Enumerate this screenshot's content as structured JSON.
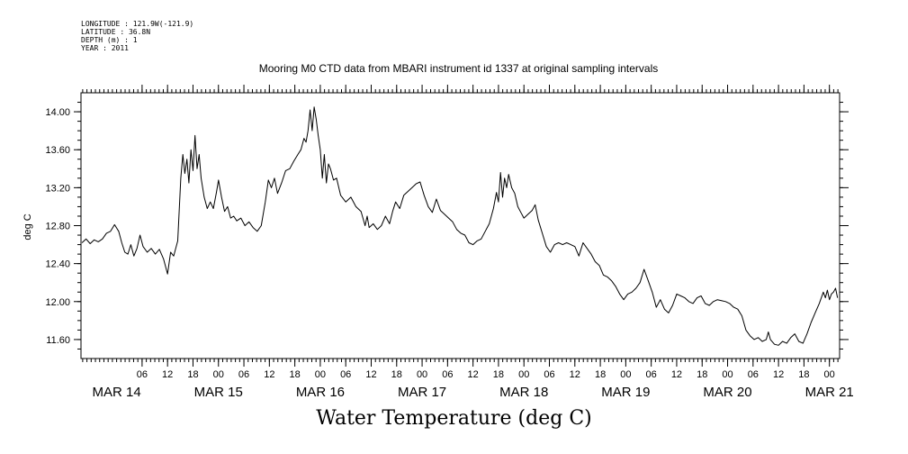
{
  "meta": {
    "longitude": "LONGITUDE : 121.9W(-121.9)",
    "latitude": "LATITUDE : 36.8N",
    "depth": "DEPTH (m) : 1",
    "year": "YEAR : 2011"
  },
  "chart_data": {
    "type": "line",
    "title": "Mooring M0 CTD data from MBARI instrument id 1337 at original sampling intervals",
    "xlabel": "Water Temperature (deg C)",
    "ylabel": "deg C",
    "x_unit": "days from 00:00 MAR 14",
    "xlim": [
      -0.35,
      7.1
    ],
    "ylim": [
      11.4,
      14.2
    ],
    "y_ticks": [
      11.6,
      12.0,
      12.4,
      12.8,
      13.2,
      13.6,
      14.0
    ],
    "y_tick_labels": [
      "11.60",
      "12.00",
      "12.40",
      "12.80",
      "13.20",
      "13.60",
      "14.00"
    ],
    "hour_ticks": [
      {
        "t": 0.25,
        "label": "06"
      },
      {
        "t": 0.5,
        "label": "12"
      },
      {
        "t": 0.75,
        "label": "18"
      },
      {
        "t": 1.0,
        "label": "00"
      },
      {
        "t": 1.25,
        "label": "06"
      },
      {
        "t": 1.5,
        "label": "12"
      },
      {
        "t": 1.75,
        "label": "18"
      },
      {
        "t": 2.0,
        "label": "00"
      },
      {
        "t": 2.25,
        "label": "06"
      },
      {
        "t": 2.5,
        "label": "12"
      },
      {
        "t": 2.75,
        "label": "18"
      },
      {
        "t": 3.0,
        "label": "00"
      },
      {
        "t": 3.25,
        "label": "06"
      },
      {
        "t": 3.5,
        "label": "12"
      },
      {
        "t": 3.75,
        "label": "18"
      },
      {
        "t": 4.0,
        "label": "00"
      },
      {
        "t": 4.25,
        "label": "06"
      },
      {
        "t": 4.5,
        "label": "12"
      },
      {
        "t": 4.75,
        "label": "18"
      },
      {
        "t": 5.0,
        "label": "00"
      },
      {
        "t": 5.25,
        "label": "06"
      },
      {
        "t": 5.5,
        "label": "12"
      },
      {
        "t": 5.75,
        "label": "18"
      },
      {
        "t": 6.0,
        "label": "00"
      },
      {
        "t": 6.25,
        "label": "06"
      },
      {
        "t": 6.5,
        "label": "12"
      },
      {
        "t": 6.75,
        "label": "18"
      },
      {
        "t": 7.0,
        "label": "00"
      }
    ],
    "day_labels": [
      {
        "t": 0.0,
        "label": "MAR 14"
      },
      {
        "t": 1.0,
        "label": "MAR 15"
      },
      {
        "t": 2.0,
        "label": "MAR 16"
      },
      {
        "t": 3.0,
        "label": "MAR 17"
      },
      {
        "t": 4.0,
        "label": "MAR 18"
      },
      {
        "t": 5.0,
        "label": "MAR 19"
      },
      {
        "t": 6.0,
        "label": "MAR 20"
      },
      {
        "t": 7.0,
        "label": "MAR 21"
      }
    ],
    "grid": false,
    "series": [
      {
        "color": "#000000",
        "points": [
          [
            -0.34,
            12.62
          ],
          [
            -0.3,
            12.66
          ],
          [
            -0.26,
            12.61
          ],
          [
            -0.22,
            12.65
          ],
          [
            -0.18,
            12.63
          ],
          [
            -0.14,
            12.66
          ],
          [
            -0.1,
            12.72
          ],
          [
            -0.06,
            12.74
          ],
          [
            -0.02,
            12.81
          ],
          [
            0.02,
            12.74
          ],
          [
            0.05,
            12.62
          ],
          [
            0.08,
            12.52
          ],
          [
            0.11,
            12.5
          ],
          [
            0.14,
            12.6
          ],
          [
            0.17,
            12.48
          ],
          [
            0.2,
            12.56
          ],
          [
            0.23,
            12.7
          ],
          [
            0.26,
            12.58
          ],
          [
            0.3,
            12.52
          ],
          [
            0.34,
            12.56
          ],
          [
            0.38,
            12.5
          ],
          [
            0.42,
            12.55
          ],
          [
            0.46,
            12.45
          ],
          [
            0.5,
            12.29
          ],
          [
            0.53,
            12.52
          ],
          [
            0.56,
            12.48
          ],
          [
            0.6,
            12.64
          ],
          [
            0.63,
            13.3
          ],
          [
            0.65,
            13.55
          ],
          [
            0.67,
            13.35
          ],
          [
            0.69,
            13.5
          ],
          [
            0.71,
            13.25
          ],
          [
            0.73,
            13.6
          ],
          [
            0.75,
            13.38
          ],
          [
            0.77,
            13.75
          ],
          [
            0.79,
            13.4
          ],
          [
            0.81,
            13.55
          ],
          [
            0.83,
            13.3
          ],
          [
            0.86,
            13.1
          ],
          [
            0.89,
            12.98
          ],
          [
            0.92,
            13.05
          ],
          [
            0.95,
            12.98
          ],
          [
            0.98,
            13.15
          ],
          [
            1.0,
            13.28
          ],
          [
            1.03,
            13.1
          ],
          [
            1.06,
            12.95
          ],
          [
            1.09,
            13.0
          ],
          [
            1.12,
            12.88
          ],
          [
            1.15,
            12.9
          ],
          [
            1.18,
            12.85
          ],
          [
            1.22,
            12.88
          ],
          [
            1.26,
            12.8
          ],
          [
            1.3,
            12.84
          ],
          [
            1.34,
            12.78
          ],
          [
            1.38,
            12.74
          ],
          [
            1.42,
            12.8
          ],
          [
            1.46,
            13.05
          ],
          [
            1.49,
            13.28
          ],
          [
            1.52,
            13.2
          ],
          [
            1.55,
            13.3
          ],
          [
            1.58,
            13.14
          ],
          [
            1.62,
            13.25
          ],
          [
            1.66,
            13.38
          ],
          [
            1.7,
            13.4
          ],
          [
            1.74,
            13.48
          ],
          [
            1.78,
            13.55
          ],
          [
            1.81,
            13.6
          ],
          [
            1.84,
            13.72
          ],
          [
            1.86,
            13.68
          ],
          [
            1.88,
            13.8
          ],
          [
            1.9,
            14.02
          ],
          [
            1.92,
            13.8
          ],
          [
            1.94,
            14.05
          ],
          [
            1.96,
            13.92
          ],
          [
            1.98,
            13.75
          ],
          [
            2.0,
            13.6
          ],
          [
            2.02,
            13.3
          ],
          [
            2.04,
            13.55
          ],
          [
            2.06,
            13.25
          ],
          [
            2.08,
            13.45
          ],
          [
            2.1,
            13.4
          ],
          [
            2.13,
            13.28
          ],
          [
            2.16,
            13.3
          ],
          [
            2.2,
            13.12
          ],
          [
            2.25,
            13.05
          ],
          [
            2.3,
            13.1
          ],
          [
            2.35,
            13.0
          ],
          [
            2.4,
            12.95
          ],
          [
            2.44,
            12.8
          ],
          [
            2.46,
            12.9
          ],
          [
            2.48,
            12.78
          ],
          [
            2.52,
            12.82
          ],
          [
            2.56,
            12.76
          ],
          [
            2.6,
            12.8
          ],
          [
            2.64,
            12.9
          ],
          [
            2.68,
            12.82
          ],
          [
            2.71,
            12.95
          ],
          [
            2.74,
            13.05
          ],
          [
            2.78,
            12.98
          ],
          [
            2.82,
            13.12
          ],
          [
            2.86,
            13.16
          ],
          [
            2.9,
            13.2
          ],
          [
            2.94,
            13.24
          ],
          [
            2.98,
            13.26
          ],
          [
            3.02,
            13.12
          ],
          [
            3.06,
            13.0
          ],
          [
            3.1,
            12.94
          ],
          [
            3.14,
            13.08
          ],
          [
            3.18,
            12.96
          ],
          [
            3.22,
            12.92
          ],
          [
            3.26,
            12.88
          ],
          [
            3.3,
            12.84
          ],
          [
            3.34,
            12.76
          ],
          [
            3.38,
            12.72
          ],
          [
            3.42,
            12.7
          ],
          [
            3.46,
            12.62
          ],
          [
            3.5,
            12.6
          ],
          [
            3.54,
            12.64
          ],
          [
            3.58,
            12.66
          ],
          [
            3.62,
            12.74
          ],
          [
            3.66,
            12.82
          ],
          [
            3.7,
            12.98
          ],
          [
            3.73,
            13.15
          ],
          [
            3.75,
            13.05
          ],
          [
            3.77,
            13.36
          ],
          [
            3.79,
            13.1
          ],
          [
            3.81,
            13.3
          ],
          [
            3.83,
            13.2
          ],
          [
            3.85,
            13.34
          ],
          [
            3.88,
            13.2
          ],
          [
            3.91,
            13.14
          ],
          [
            3.94,
            13.0
          ],
          [
            3.97,
            12.94
          ],
          [
            4.0,
            12.88
          ],
          [
            4.04,
            12.92
          ],
          [
            4.08,
            12.96
          ],
          [
            4.11,
            13.02
          ],
          [
            4.14,
            12.86
          ],
          [
            4.18,
            12.72
          ],
          [
            4.22,
            12.58
          ],
          [
            4.26,
            12.52
          ],
          [
            4.3,
            12.6
          ],
          [
            4.34,
            12.62
          ],
          [
            4.38,
            12.6
          ],
          [
            4.42,
            12.62
          ],
          [
            4.46,
            12.6
          ],
          [
            4.5,
            12.58
          ],
          [
            4.54,
            12.48
          ],
          [
            4.58,
            12.62
          ],
          [
            4.62,
            12.56
          ],
          [
            4.66,
            12.5
          ],
          [
            4.7,
            12.42
          ],
          [
            4.74,
            12.38
          ],
          [
            4.78,
            12.28
          ],
          [
            4.82,
            12.26
          ],
          [
            4.86,
            12.22
          ],
          [
            4.9,
            12.16
          ],
          [
            4.94,
            12.08
          ],
          [
            4.98,
            12.02
          ],
          [
            5.02,
            12.08
          ],
          [
            5.06,
            12.1
          ],
          [
            5.1,
            12.14
          ],
          [
            5.14,
            12.2
          ],
          [
            5.18,
            12.34
          ],
          [
            5.22,
            12.22
          ],
          [
            5.26,
            12.1
          ],
          [
            5.3,
            11.94
          ],
          [
            5.34,
            12.02
          ],
          [
            5.38,
            11.92
          ],
          [
            5.42,
            11.88
          ],
          [
            5.46,
            11.96
          ],
          [
            5.5,
            12.08
          ],
          [
            5.54,
            12.06
          ],
          [
            5.58,
            12.04
          ],
          [
            5.62,
            12.0
          ],
          [
            5.66,
            11.98
          ],
          [
            5.7,
            12.04
          ],
          [
            5.74,
            12.06
          ],
          [
            5.78,
            11.98
          ],
          [
            5.82,
            11.96
          ],
          [
            5.86,
            12.0
          ],
          [
            5.9,
            12.02
          ],
          [
            5.94,
            12.01
          ],
          [
            5.98,
            12.0
          ],
          [
            6.02,
            11.98
          ],
          [
            6.06,
            11.94
          ],
          [
            6.1,
            11.92
          ],
          [
            6.14,
            11.85
          ],
          [
            6.18,
            11.7
          ],
          [
            6.22,
            11.64
          ],
          [
            6.26,
            11.6
          ],
          [
            6.3,
            11.62
          ],
          [
            6.34,
            11.58
          ],
          [
            6.38,
            11.6
          ],
          [
            6.4,
            11.68
          ],
          [
            6.42,
            11.6
          ],
          [
            6.46,
            11.55
          ],
          [
            6.5,
            11.54
          ],
          [
            6.54,
            11.58
          ],
          [
            6.58,
            11.56
          ],
          [
            6.62,
            11.62
          ],
          [
            6.66,
            11.66
          ],
          [
            6.7,
            11.58
          ],
          [
            6.74,
            11.56
          ],
          [
            6.78,
            11.66
          ],
          [
            6.82,
            11.78
          ],
          [
            6.86,
            11.88
          ],
          [
            6.9,
            11.98
          ],
          [
            6.94,
            12.1
          ],
          [
            6.96,
            12.04
          ],
          [
            6.98,
            12.12
          ],
          [
            7.0,
            12.02
          ],
          [
            7.02,
            12.08
          ],
          [
            7.04,
            12.1
          ],
          [
            7.06,
            12.14
          ],
          [
            7.08,
            12.04
          ]
        ]
      }
    ]
  }
}
